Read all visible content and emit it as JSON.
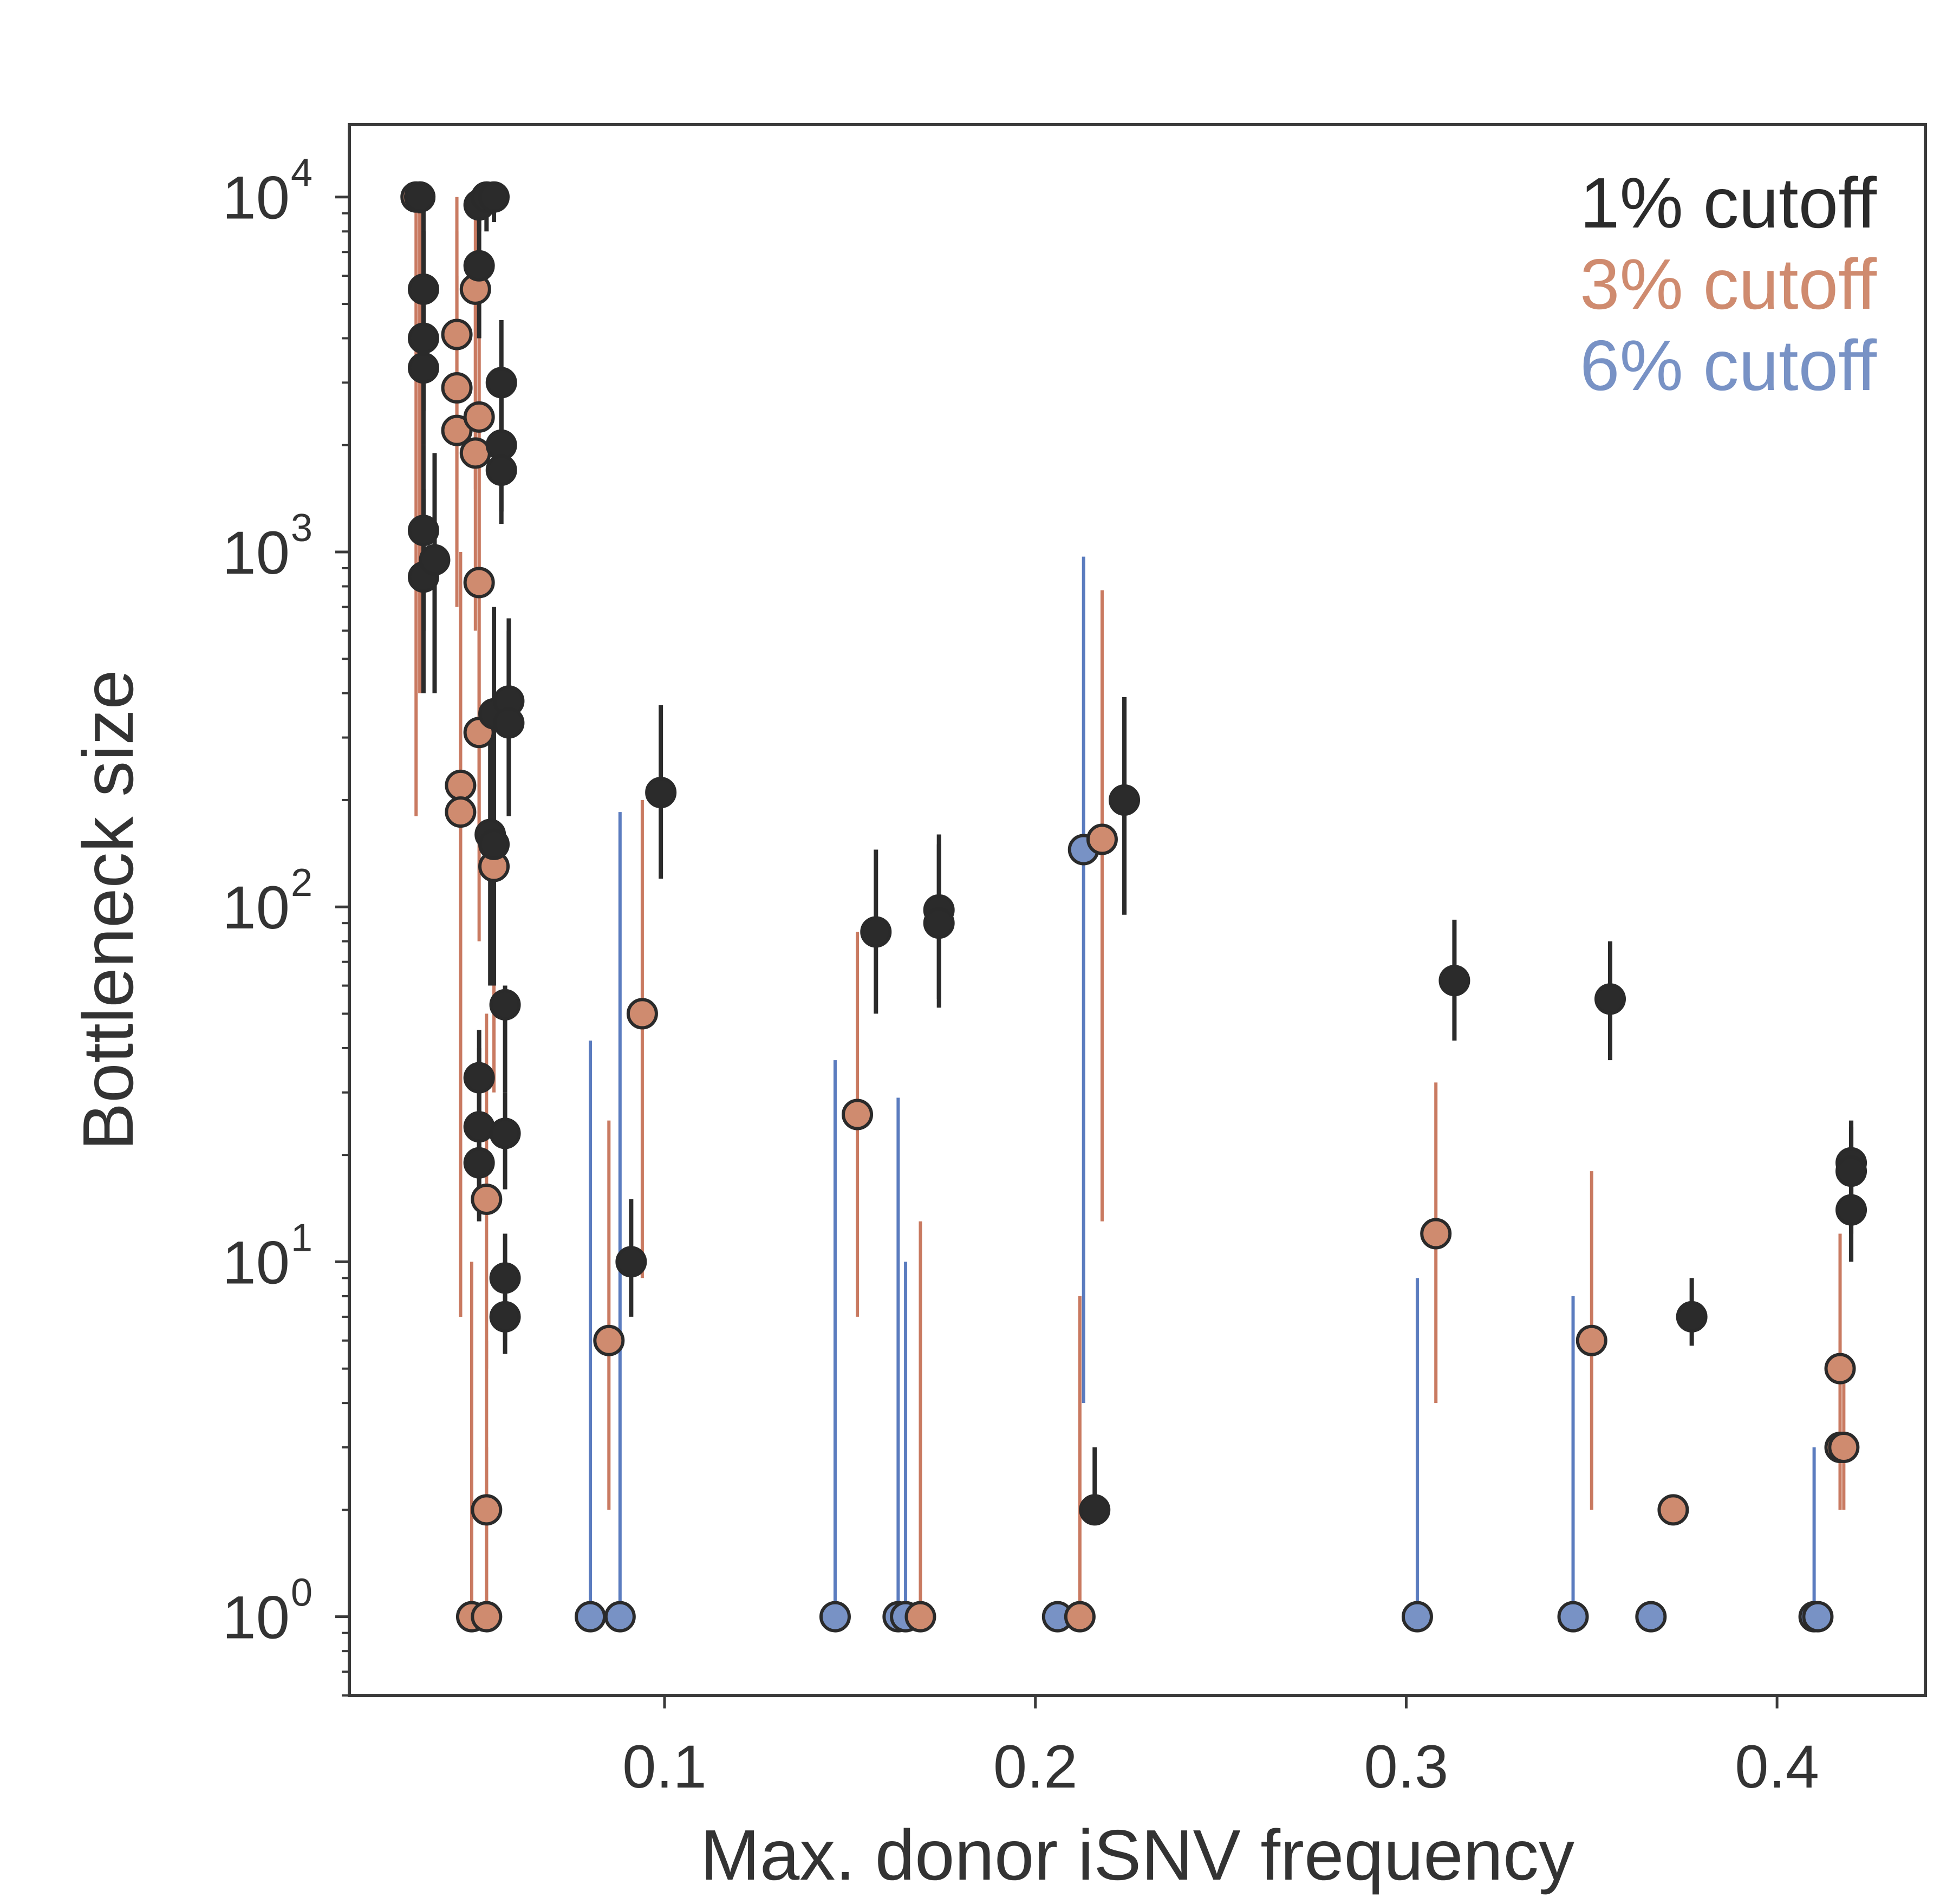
{
  "chart_data": {
    "type": "scatter",
    "title": "",
    "xlabel": "Max. donor iSNV frequency",
    "ylabel": "Bottleneck size",
    "x_scale": "linear",
    "y_scale": "log",
    "xlim": [
      0.015,
      0.44
    ],
    "ylim": [
      0.6,
      16000
    ],
    "x_ticks": [
      {
        "value": 0.1,
        "label": "0.1"
      },
      {
        "value": 0.2,
        "label": "0.2"
      },
      {
        "value": 0.3,
        "label": "0.3"
      },
      {
        "value": 0.4,
        "label": "0.4"
      }
    ],
    "y_ticks": [
      {
        "value": 1,
        "base": "10",
        "exp": "0"
      },
      {
        "value": 10,
        "base": "10",
        "exp": "1"
      },
      {
        "value": 100,
        "base": "10",
        "exp": "2"
      },
      {
        "value": 1000,
        "base": "10",
        "exp": "3"
      },
      {
        "value": 10000,
        "base": "10",
        "exp": "4"
      }
    ],
    "grid": false,
    "legend_position": "top-right",
    "error_bars": "vertical (lo, hi) intervals per point",
    "series": [
      {
        "name": "1% cutoff",
        "color": "#2b2b2b",
        "points": [
          {
            "x": 0.034,
            "y": 10000,
            "lo": 9000,
            "hi": 10000
          },
          {
            "x": 0.035,
            "y": 5500,
            "lo": 3500,
            "hi": 10000
          },
          {
            "x": 0.035,
            "y": 4000,
            "lo": 2500,
            "hi": 8000
          },
          {
            "x": 0.035,
            "y": 3300,
            "lo": 2000,
            "hi": 6000
          },
          {
            "x": 0.035,
            "y": 1150,
            "lo": 600,
            "hi": 2000
          },
          {
            "x": 0.035,
            "y": 850,
            "lo": 400,
            "hi": 1500
          },
          {
            "x": 0.038,
            "y": 950,
            "lo": 400,
            "hi": 1900
          },
          {
            "x": 0.05,
            "y": 9500,
            "lo": 8000,
            "hi": 10000
          },
          {
            "x": 0.052,
            "y": 10000,
            "lo": 8000,
            "hi": 10000
          },
          {
            "x": 0.054,
            "y": 10000,
            "lo": 8500,
            "hi": 10000
          },
          {
            "x": 0.05,
            "y": 6400,
            "lo": 4000,
            "hi": 10000
          },
          {
            "x": 0.056,
            "y": 3000,
            "lo": 1800,
            "hi": 4500
          },
          {
            "x": 0.056,
            "y": 2000,
            "lo": 1300,
            "hi": 3300
          },
          {
            "x": 0.056,
            "y": 1700,
            "lo": 1200,
            "hi": 3000
          },
          {
            "x": 0.054,
            "y": 350,
            "lo": 120,
            "hi": 700
          },
          {
            "x": 0.058,
            "y": 380,
            "lo": 200,
            "hi": 650
          },
          {
            "x": 0.058,
            "y": 330,
            "lo": 180,
            "hi": 600
          },
          {
            "x": 0.053,
            "y": 160,
            "lo": 60,
            "hi": 350
          },
          {
            "x": 0.054,
            "y": 150,
            "lo": 60,
            "hi": 300
          },
          {
            "x": 0.057,
            "y": 53,
            "lo": 30,
            "hi": 60
          },
          {
            "x": 0.05,
            "y": 33,
            "lo": 20,
            "hi": 45
          },
          {
            "x": 0.05,
            "y": 24,
            "lo": 14,
            "hi": 40
          },
          {
            "x": 0.05,
            "y": 19,
            "lo": 13,
            "hi": 30
          },
          {
            "x": 0.057,
            "y": 23,
            "lo": 16,
            "hi": 30
          },
          {
            "x": 0.057,
            "y": 9,
            "lo": 6,
            "hi": 12
          },
          {
            "x": 0.057,
            "y": 7,
            "lo": 5.5,
            "hi": 9
          },
          {
            "x": 0.091,
            "y": 10,
            "lo": 7,
            "hi": 15
          },
          {
            "x": 0.099,
            "y": 210,
            "lo": 120,
            "hi": 370
          },
          {
            "x": 0.157,
            "y": 85,
            "lo": 50,
            "hi": 145
          },
          {
            "x": 0.174,
            "y": 98,
            "lo": 55,
            "hi": 160
          },
          {
            "x": 0.174,
            "y": 90,
            "lo": 52,
            "hi": 150
          },
          {
            "x": 0.216,
            "y": 2,
            "lo": 2,
            "hi": 3
          },
          {
            "x": 0.224,
            "y": 200,
            "lo": 95,
            "hi": 390
          },
          {
            "x": 0.313,
            "y": 62,
            "lo": 42,
            "hi": 92
          },
          {
            "x": 0.355,
            "y": 55,
            "lo": 37,
            "hi": 80
          },
          {
            "x": 0.377,
            "y": 7,
            "lo": 5.8,
            "hi": 9
          },
          {
            "x": 0.42,
            "y": 19,
            "lo": 13,
            "hi": 25
          },
          {
            "x": 0.42,
            "y": 18,
            "lo": 12,
            "hi": 24
          },
          {
            "x": 0.42,
            "y": 14,
            "lo": 10,
            "hi": 20
          }
        ]
      },
      {
        "name": "3% cutoff",
        "color": "#cf8b6f",
        "line_color": "#c97a61",
        "points": [
          {
            "x": 0.033,
            "y": 10000,
            "lo": 180,
            "hi": 10000
          },
          {
            "x": 0.034,
            "y": 10000,
            "lo": 400,
            "hi": 10000
          },
          {
            "x": 0.044,
            "y": 4100,
            "lo": 1500,
            "hi": 10000
          },
          {
            "x": 0.044,
            "y": 2900,
            "lo": 1000,
            "hi": 8000
          },
          {
            "x": 0.044,
            "y": 2200,
            "lo": 700,
            "hi": 6000
          },
          {
            "x": 0.049,
            "y": 5500,
            "lo": 1500,
            "hi": 10000
          },
          {
            "x": 0.05,
            "y": 2400,
            "lo": 800,
            "hi": 9000
          },
          {
            "x": 0.049,
            "y": 1900,
            "lo": 600,
            "hi": 7000
          },
          {
            "x": 0.05,
            "y": 820,
            "lo": 150,
            "hi": 5000
          },
          {
            "x": 0.05,
            "y": 310,
            "lo": 80,
            "hi": 2000
          },
          {
            "x": 0.045,
            "y": 220,
            "lo": 7,
            "hi": 1000
          },
          {
            "x": 0.045,
            "y": 185,
            "lo": 7,
            "hi": 800
          },
          {
            "x": 0.054,
            "y": 130,
            "lo": 30,
            "hi": 350
          },
          {
            "x": 0.052,
            "y": 15,
            "lo": 5,
            "hi": 50
          },
          {
            "x": 0.052,
            "y": 2,
            "lo": 1,
            "hi": 3
          },
          {
            "x": 0.048,
            "y": 1,
            "lo": 1,
            "hi": 10
          },
          {
            "x": 0.052,
            "y": 1,
            "lo": 1,
            "hi": 6
          },
          {
            "x": 0.085,
            "y": 6,
            "lo": 2,
            "hi": 25
          },
          {
            "x": 0.094,
            "y": 50,
            "lo": 9,
            "hi": 200
          },
          {
            "x": 0.152,
            "y": 26,
            "lo": 7,
            "hi": 85
          },
          {
            "x": 0.169,
            "y": 1,
            "lo": 1,
            "hi": 13
          },
          {
            "x": 0.212,
            "y": 1,
            "lo": 1,
            "hi": 8
          },
          {
            "x": 0.218,
            "y": 155,
            "lo": 13,
            "hi": 780
          },
          {
            "x": 0.308,
            "y": 12,
            "lo": 4,
            "hi": 32
          },
          {
            "x": 0.35,
            "y": 6,
            "lo": 2,
            "hi": 18
          },
          {
            "x": 0.372,
            "y": 2,
            "lo": 2,
            "hi": 2
          },
          {
            "x": 0.417,
            "y": 5,
            "lo": 2,
            "hi": 12
          },
          {
            "x": 0.417,
            "y": 3,
            "lo": 2,
            "hi": 6
          },
          {
            "x": 0.418,
            "y": 3,
            "lo": 2,
            "hi": 5
          }
        ]
      },
      {
        "name": "6% cutoff",
        "color": "#7892c5",
        "line_color": "#5b7cbf",
        "points": [
          {
            "x": 0.08,
            "y": 1,
            "lo": 1,
            "hi": 42
          },
          {
            "x": 0.088,
            "y": 1,
            "lo": 1,
            "hi": 185
          },
          {
            "x": 0.146,
            "y": 1,
            "lo": 1,
            "hi": 37
          },
          {
            "x": 0.163,
            "y": 1,
            "lo": 1,
            "hi": 29
          },
          {
            "x": 0.165,
            "y": 1,
            "lo": 1,
            "hi": 10
          },
          {
            "x": 0.206,
            "y": 1,
            "lo": 1,
            "hi": 1
          },
          {
            "x": 0.213,
            "y": 145,
            "lo": 4,
            "hi": 970
          },
          {
            "x": 0.303,
            "y": 1,
            "lo": 1,
            "hi": 9
          },
          {
            "x": 0.345,
            "y": 1,
            "lo": 1,
            "hi": 8
          },
          {
            "x": 0.366,
            "y": 1,
            "lo": 1,
            "hi": 1
          },
          {
            "x": 0.41,
            "y": 1,
            "lo": 1,
            "hi": 3
          },
          {
            "x": 0.411,
            "y": 1,
            "lo": 1,
            "hi": 1
          }
        ]
      }
    ]
  }
}
